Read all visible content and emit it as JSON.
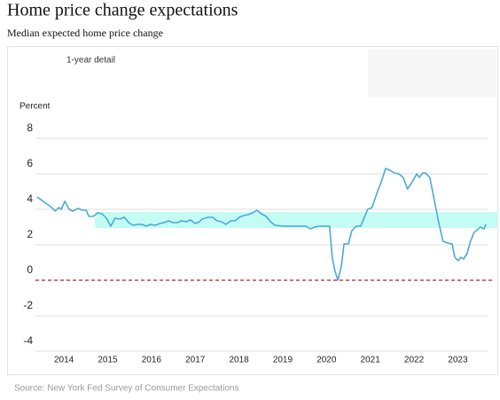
{
  "chart_data": {
    "type": "line",
    "title": "Home price change expectations",
    "subtitle": "Median expected home price change",
    "annotation": "1-year detail",
    "y_label": "Percent",
    "source": "Source: New York Fed Survey of Consumer Expectations",
    "xlim": [
      2013.35,
      2023.68
    ],
    "xticks": [
      2014,
      2015,
      2016,
      2017,
      2018,
      2019,
      2020,
      2021,
      2022,
      2023
    ],
    "ylim": [
      -4,
      8
    ],
    "yticks": [
      8,
      6,
      4,
      2,
      0,
      -2,
      -4
    ],
    "grid": true,
    "zero_line_color": "#b22222",
    "band": {
      "start": 2014.71,
      "values": [
        2.95,
        3.85
      ],
      "color": "#c4fcf3"
    },
    "series": [
      {
        "color": "#4aa8dc",
        "x": [
          2013.39,
          2013.55,
          2013.7,
          2013.8,
          2013.88,
          2013.94,
          2014.02,
          2014.12,
          2014.2,
          2014.32,
          2014.43,
          2014.51,
          2014.57,
          2014.67,
          2014.77,
          2014.87,
          2014.97,
          2015.07,
          2015.17,
          2015.28,
          2015.38,
          2015.48,
          2015.58,
          2015.68,
          2015.78,
          2015.88,
          2015.98,
          2016.09,
          2016.19,
          2016.29,
          2016.39,
          2016.49,
          2016.59,
          2016.69,
          2016.79,
          2016.89,
          2017.0,
          2017.1,
          2017.16,
          2017.3,
          2017.4,
          2017.5,
          2017.6,
          2017.7,
          2017.81,
          2017.91,
          2018.01,
          2018.11,
          2018.21,
          2018.31,
          2018.41,
          2018.51,
          2018.62,
          2018.72,
          2018.82,
          2019.02,
          2019.22,
          2019.43,
          2019.53,
          2019.63,
          2019.73,
          2019.83,
          2020.07,
          2020.13,
          2020.19,
          2020.26,
          2020.34,
          2020.4,
          2020.5,
          2020.58,
          2020.68,
          2020.78,
          2020.84,
          2020.94,
          2021.04,
          2021.15,
          2021.25,
          2021.35,
          2021.45,
          2021.55,
          2021.65,
          2021.75,
          2021.85,
          2021.96,
          2022.06,
          2022.12,
          2022.2,
          2022.26,
          2022.36,
          2022.46,
          2022.56,
          2022.66,
          2022.77,
          2022.87,
          2022.93,
          2023.01,
          2023.07,
          2023.13,
          2023.21,
          2023.29,
          2023.37,
          2023.43,
          2023.51,
          2023.6,
          2023.64
        ],
        "values": [
          4.7,
          4.4,
          4.15,
          3.9,
          4.1,
          4.0,
          4.45,
          4.0,
          3.9,
          4.05,
          3.95,
          3.95,
          3.6,
          3.6,
          3.8,
          3.75,
          3.5,
          3.05,
          3.5,
          3.45,
          3.55,
          3.25,
          3.1,
          3.15,
          3.15,
          3.05,
          3.15,
          3.1,
          3.2,
          3.25,
          3.35,
          3.25,
          3.25,
          3.35,
          3.3,
          3.4,
          3.2,
          3.3,
          3.45,
          3.55,
          3.55,
          3.35,
          3.3,
          3.15,
          3.35,
          3.35,
          3.55,
          3.65,
          3.7,
          3.8,
          3.95,
          3.75,
          3.6,
          3.3,
          3.1,
          3.05,
          3.05,
          3.05,
          3.05,
          2.9,
          3.0,
          3.05,
          3.05,
          1.3,
          0.55,
          0.0,
          0.8,
          2.05,
          2.05,
          2.8,
          3.05,
          3.05,
          3.4,
          4.0,
          4.1,
          4.9,
          5.55,
          6.3,
          6.2,
          6.05,
          6.0,
          5.8,
          5.15,
          5.55,
          6.0,
          5.8,
          6.05,
          6.05,
          5.8,
          4.55,
          3.3,
          2.2,
          2.1,
          2.05,
          1.3,
          1.1,
          1.3,
          1.2,
          1.5,
          2.2,
          2.7,
          2.8,
          3.0,
          2.9,
          3.15
        ]
      }
    ]
  }
}
